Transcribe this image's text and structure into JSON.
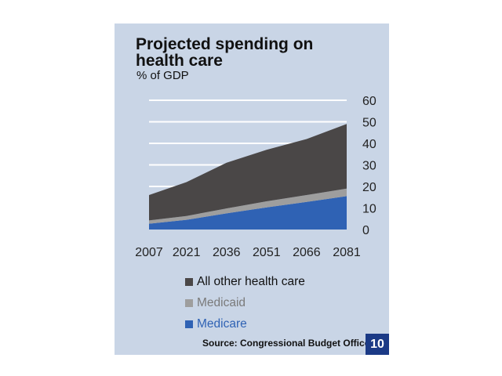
{
  "slide": {
    "title": "Projected spending on\nhealth care",
    "subtitle": "% of GDP",
    "source": "Source: Congressional Budget Office",
    "page_number": "10"
  },
  "chart_data": {
    "type": "area",
    "stacked": true,
    "title": "Projected spending on health care",
    "ylabel": "% of GDP",
    "xlabel": "",
    "x": [
      2007,
      2021,
      2036,
      2051,
      2066,
      2081
    ],
    "x_tick_labels": [
      "2007",
      "2021",
      "2036",
      "2051",
      "2066",
      "2081"
    ],
    "y_tick_labels": [
      "60",
      "50",
      "40",
      "30",
      "20",
      "10",
      "0"
    ],
    "ylim": [
      0,
      60
    ],
    "y_axis_position": "right",
    "grid": true,
    "legend_position": "bottom",
    "series": [
      {
        "name": "Medicare",
        "color": "#2f62b4",
        "values": [
          2.7,
          4.5,
          7.5,
          10.3,
          12.8,
          15.5
        ]
      },
      {
        "name": "Medicaid",
        "color": "#9e9e9e",
        "values": [
          1.5,
          1.8,
          2.3,
          2.8,
          3.2,
          3.5
        ]
      },
      {
        "name": "All other health care",
        "color": "#4a4747",
        "values": [
          11.8,
          15.7,
          21.2,
          23.9,
          26.0,
          30.0
        ]
      }
    ],
    "legend_order": [
      "All other health care",
      "Medicaid",
      "Medicare"
    ],
    "legend_text_colors": {
      "All other health care": "#111111",
      "Medicaid": "#7a7a7a",
      "Medicare": "#2f62b4"
    }
  }
}
